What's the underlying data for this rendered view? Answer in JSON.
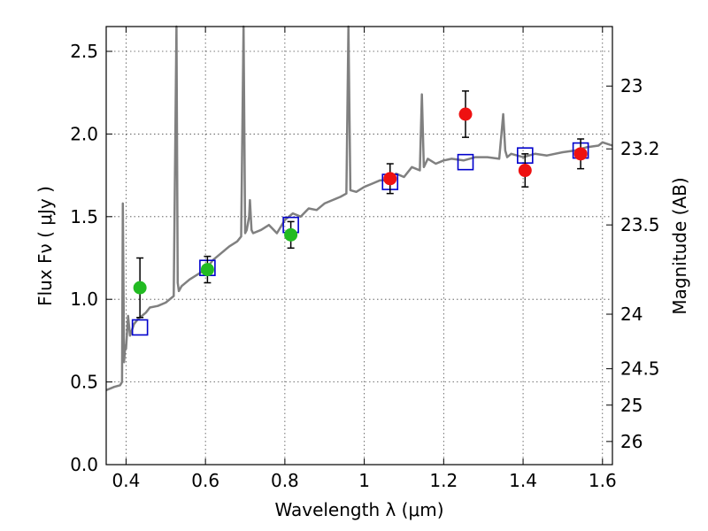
{
  "chart_data": {
    "type": "line",
    "xlabel": "Wavelength  λ (μm)",
    "ylabel": "Flux  Fν  ( μJy )",
    "y2label": "Magnitude (AB)",
    "xlim": [
      0.35,
      1.625
    ],
    "ylim": [
      0.0,
      2.65
    ],
    "x_ticks": [
      0.4,
      0.6,
      0.8,
      1.0,
      1.2,
      1.4,
      1.6
    ],
    "x_tick_labels": [
      "0.4",
      "0.6",
      "0.8",
      "1",
      "1.2",
      "1.4",
      "1.6"
    ],
    "y_ticks": [
      0.0,
      0.5,
      1.0,
      1.5,
      2.0,
      2.5
    ],
    "y_tick_labels": [
      "0.0",
      "0.5",
      "1.0",
      "1.5",
      "2.0",
      "2.5"
    ],
    "y2_ticks": [
      {
        "label": "23",
        "flux": 2.29
      },
      {
        "label": "23.2",
        "flux": 1.91
      },
      {
        "label": "23.5",
        "flux": 1.45
      },
      {
        "label": "24",
        "flux": 0.91
      },
      {
        "label": "24.5",
        "flux": 0.58
      },
      {
        "label": "25",
        "flux": 0.36
      },
      {
        "label": "26",
        "flux": 0.14
      }
    ],
    "grid": true,
    "colors": {
      "template": "#808080",
      "model": "#0000cc",
      "observed_optical": "#22bb22",
      "observed_nir": "#ee1111",
      "errorbar": "#000000"
    },
    "series": [
      {
        "kind": "spectrum",
        "x": [
          0.35,
          0.37,
          0.385,
          0.39,
          0.392,
          0.395,
          0.398,
          0.4,
          0.405,
          0.41,
          0.42,
          0.43,
          0.44,
          0.45,
          0.46,
          0.48,
          0.5,
          0.52,
          0.527,
          0.53,
          0.533,
          0.54,
          0.56,
          0.58,
          0.6,
          0.62,
          0.64,
          0.66,
          0.68,
          0.69,
          0.696,
          0.7,
          0.704,
          0.71,
          0.712,
          0.716,
          0.72,
          0.74,
          0.76,
          0.78,
          0.8,
          0.82,
          0.84,
          0.86,
          0.88,
          0.9,
          0.92,
          0.94,
          0.955,
          0.96,
          0.965,
          0.98,
          1.0,
          1.02,
          1.04,
          1.06,
          1.08,
          1.1,
          1.12,
          1.14,
          1.145,
          1.15,
          1.16,
          1.18,
          1.2,
          1.22,
          1.25,
          1.28,
          1.31,
          1.34,
          1.35,
          1.355,
          1.36,
          1.37,
          1.4,
          1.43,
          1.46,
          1.5,
          1.53,
          1.56,
          1.59,
          1.6,
          1.625
        ],
        "y": [
          0.45,
          0.47,
          0.48,
          0.5,
          1.58,
          0.62,
          0.72,
          0.7,
          0.9,
          0.78,
          0.85,
          0.88,
          0.9,
          0.92,
          0.95,
          0.96,
          0.98,
          1.02,
          2.65,
          1.1,
          1.05,
          1.08,
          1.12,
          1.15,
          1.18,
          1.24,
          1.28,
          1.32,
          1.35,
          1.38,
          2.65,
          1.4,
          1.42,
          1.5,
          1.6,
          1.42,
          1.4,
          1.42,
          1.45,
          1.4,
          1.48,
          1.52,
          1.5,
          1.55,
          1.54,
          1.58,
          1.6,
          1.62,
          1.64,
          2.65,
          1.66,
          1.65,
          1.68,
          1.7,
          1.72,
          1.72,
          1.76,
          1.74,
          1.8,
          1.78,
          2.24,
          1.8,
          1.85,
          1.82,
          1.84,
          1.85,
          1.84,
          1.86,
          1.86,
          1.85,
          2.12,
          1.9,
          1.86,
          1.88,
          1.86,
          1.88,
          1.87,
          1.89,
          1.9,
          1.92,
          1.93,
          1.95,
          1.93
        ]
      },
      {
        "kind": "model_squares",
        "x": [
          0.435,
          0.605,
          0.815,
          1.065,
          1.255,
          1.405,
          1.545
        ],
        "y": [
          0.83,
          1.19,
          1.45,
          1.71,
          1.83,
          1.87,
          1.9
        ]
      },
      {
        "kind": "observed_optical",
        "x": [
          0.435,
          0.605,
          0.815
        ],
        "y": [
          1.07,
          1.18,
          1.39
        ],
        "err": [
          0.18,
          0.08,
          0.08
        ]
      },
      {
        "kind": "observed_nir",
        "x": [
          1.065,
          1.255,
          1.405,
          1.545
        ],
        "y": [
          1.73,
          2.12,
          1.78,
          1.88
        ],
        "err": [
          0.09,
          0.14,
          0.1,
          0.09
        ]
      }
    ]
  }
}
